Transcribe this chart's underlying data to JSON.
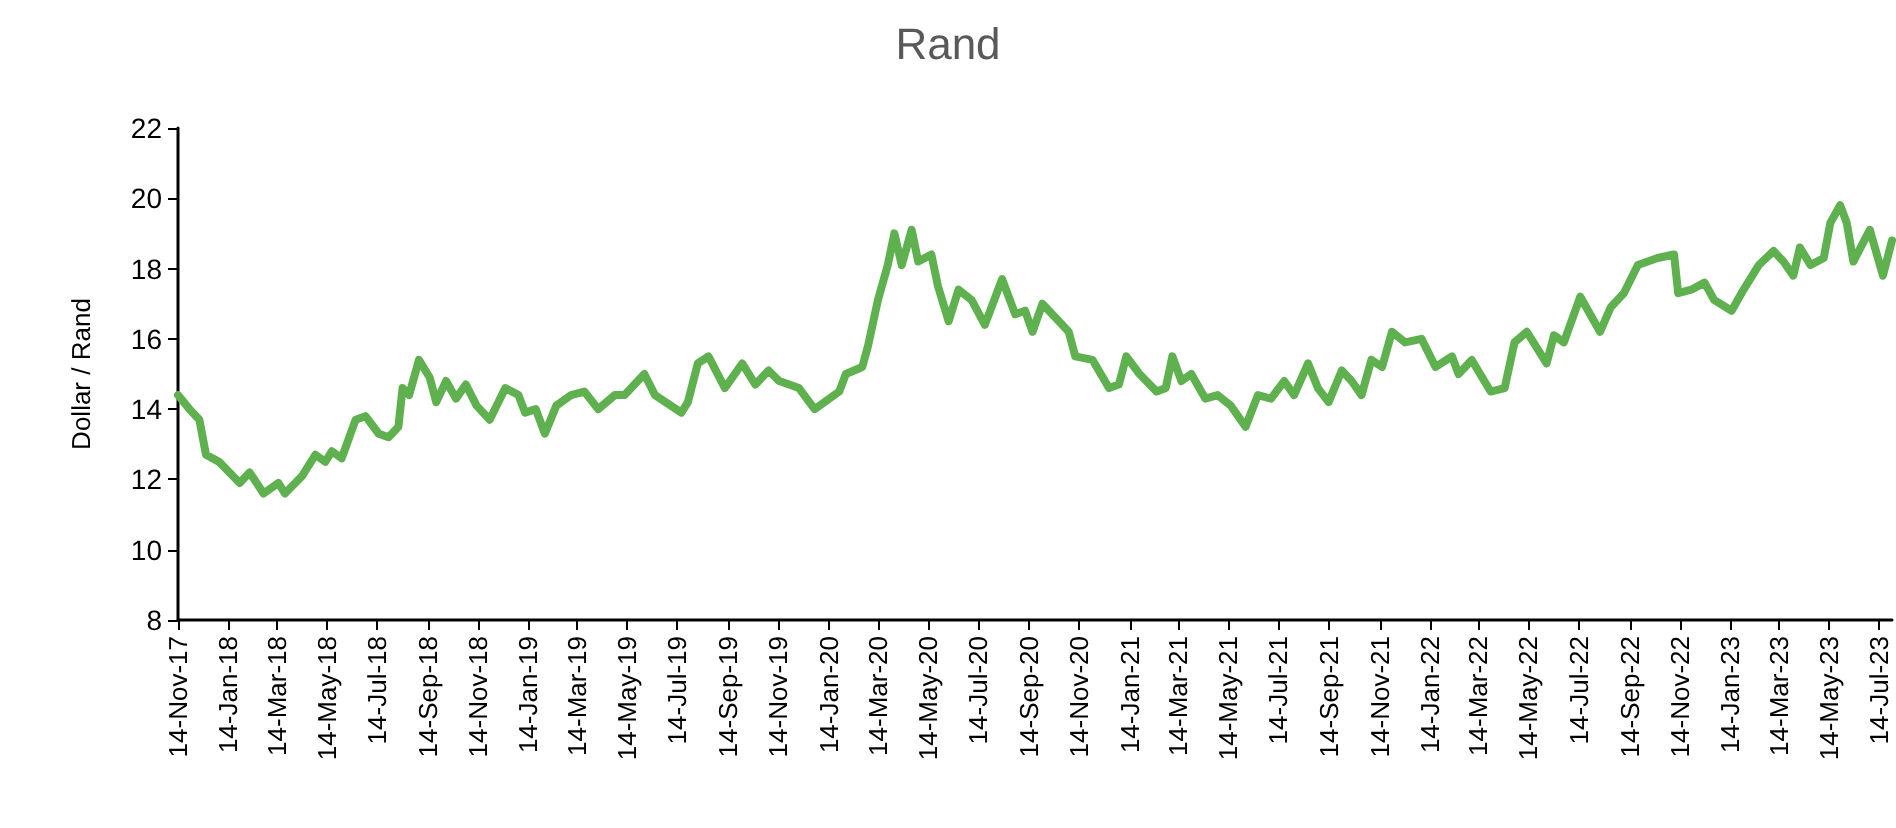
{
  "chart_data": {
    "type": "line",
    "title": "Rand",
    "ylabel": "Dollar / Rand",
    "x": [
      "2017-11-14",
      "2017-11-28",
      "2017-12-10",
      "2017-12-18",
      "2018-01-03",
      "2018-01-28",
      "2018-02-09",
      "2018-02-26",
      "2018-03-16",
      "2018-03-24",
      "2018-04-14",
      "2018-04-30",
      "2018-05-12",
      "2018-05-20",
      "2018-06-01",
      "2018-06-18",
      "2018-06-30",
      "2018-07-16",
      "2018-07-28",
      "2018-08-09",
      "2018-08-14",
      "2018-08-22",
      "2018-09-03",
      "2018-09-16",
      "2018-09-24",
      "2018-10-06",
      "2018-10-18",
      "2018-10-30",
      "2018-11-12",
      "2018-11-28",
      "2018-12-17",
      "2019-01-02",
      "2019-01-10",
      "2019-01-23",
      "2019-02-03",
      "2019-02-17",
      "2019-03-07",
      "2019-03-23",
      "2019-04-09",
      "2019-04-29",
      "2019-05-11",
      "2019-06-04",
      "2019-06-17",
      "2019-07-19",
      "2019-07-27",
      "2019-08-08",
      "2019-08-21",
      "2019-09-10",
      "2019-10-01",
      "2019-10-17",
      "2019-11-02",
      "2019-11-15",
      "2019-12-09",
      "2019-12-28",
      "2020-01-27",
      "2020-02-04",
      "2020-02-24",
      "2020-03-02",
      "2020-03-14",
      "2020-03-26",
      "2020-04-03",
      "2020-04-12",
      "2020-04-24",
      "2020-05-02",
      "2020-05-18",
      "2020-05-26",
      "2020-06-08",
      "2020-06-20",
      "2020-07-06",
      "2020-07-22",
      "2020-08-12",
      "2020-08-28",
      "2020-09-09",
      "2020-09-18",
      "2020-09-30",
      "2020-10-20",
      "2020-11-01",
      "2020-11-09",
      "2020-11-30",
      "2020-12-20",
      "2021-01-01",
      "2021-01-10",
      "2021-01-26",
      "2021-02-16",
      "2021-02-27",
      "2021-03-07",
      "2021-03-18",
      "2021-03-30",
      "2021-04-16",
      "2021-05-01",
      "2021-05-17",
      "2021-06-04",
      "2021-06-19",
      "2021-07-05",
      "2021-07-21",
      "2021-08-02",
      "2021-08-19",
      "2021-08-31",
      "2021-09-13",
      "2021-09-29",
      "2021-10-11",
      "2021-10-23",
      "2021-11-04",
      "2021-11-17",
      "2021-11-29",
      "2021-12-15",
      "2022-01-04",
      "2022-01-21",
      "2022-02-10",
      "2022-02-18",
      "2022-03-06",
      "2022-03-29",
      "2022-04-15",
      "2022-04-27",
      "2022-05-12",
      "2022-06-05",
      "2022-06-14",
      "2022-06-26",
      "2022-07-16",
      "2022-07-28",
      "2022-08-09",
      "2022-08-22",
      "2022-09-07",
      "2022-09-24",
      "2022-10-18",
      "2022-11-07",
      "2022-11-12",
      "2022-11-28",
      "2022-12-14",
      "2022-12-26",
      "2023-01-16",
      "2023-01-28",
      "2023-02-18",
      "2023-03-08",
      "2023-03-20",
      "2023-04-01",
      "2023-04-09",
      "2023-04-22",
      "2023-05-08",
      "2023-05-16",
      "2023-05-28",
      "2023-06-05",
      "2023-06-13",
      "2023-07-03",
      "2023-07-19",
      "2023-07-30"
    ],
    "series": [
      {
        "color": "#5fb150",
        "values": [
          14.4,
          14.0,
          13.7,
          12.7,
          12.5,
          11.9,
          12.2,
          11.6,
          11.9,
          11.6,
          12.1,
          12.7,
          12.5,
          12.8,
          12.6,
          13.7,
          13.8,
          13.3,
          13.2,
          13.5,
          14.6,
          14.4,
          15.4,
          14.9,
          14.2,
          14.8,
          14.3,
          14.7,
          14.1,
          13.7,
          14.6,
          14.4,
          13.9,
          14.0,
          13.3,
          14.1,
          14.4,
          14.5,
          14.0,
          14.4,
          14.4,
          15.0,
          14.4,
          13.9,
          14.2,
          15.3,
          15.5,
          14.6,
          15.3,
          14.7,
          15.1,
          14.8,
          14.6,
          14.0,
          14.5,
          15.0,
          15.2,
          15.8,
          17.1,
          18.1,
          19.0,
          18.1,
          19.1,
          18.2,
          18.4,
          17.5,
          16.5,
          17.4,
          17.1,
          16.4,
          17.7,
          16.7,
          16.8,
          16.2,
          17.0,
          16.5,
          16.2,
          15.5,
          15.4,
          14.6,
          14.7,
          15.5,
          15.0,
          14.5,
          14.6,
          15.5,
          14.8,
          15.0,
          14.3,
          14.4,
          14.1,
          13.5,
          14.4,
          14.3,
          14.8,
          14.4,
          15.3,
          14.6,
          14.2,
          15.1,
          14.8,
          14.4,
          15.4,
          15.2,
          16.2,
          15.9,
          16.0,
          15.2,
          15.5,
          15.0,
          15.4,
          14.5,
          14.6,
          15.9,
          16.2,
          15.3,
          16.1,
          15.9,
          17.2,
          16.7,
          16.2,
          16.9,
          17.3,
          18.1,
          18.3,
          18.4,
          17.3,
          17.4,
          17.6,
          17.1,
          16.8,
          17.3,
          18.1,
          18.5,
          18.2,
          17.8,
          18.6,
          18.1,
          18.3,
          19.3,
          19.8,
          19.3,
          18.2,
          19.1,
          17.8,
          18.8
        ]
      }
    ],
    "xlim": [
      "2017-11-14",
      "2023-07-30"
    ],
    "xticks": [
      {
        "value": "2017-11-14",
        "label": "14-Nov-17"
      },
      {
        "value": "2018-01-14",
        "label": "14-Jan-18"
      },
      {
        "value": "2018-03-14",
        "label": "14-Mar-18"
      },
      {
        "value": "2018-05-14",
        "label": "14-May-18"
      },
      {
        "value": "2018-07-14",
        "label": "14-Jul-18"
      },
      {
        "value": "2018-09-14",
        "label": "14-Sep-18"
      },
      {
        "value": "2018-11-14",
        "label": "14-Nov-18"
      },
      {
        "value": "2019-01-14",
        "label": "14-Jan-19"
      },
      {
        "value": "2019-03-14",
        "label": "14-Mar-19"
      },
      {
        "value": "2019-05-14",
        "label": "14-May-19"
      },
      {
        "value": "2019-07-14",
        "label": "14-Jul-19"
      },
      {
        "value": "2019-09-14",
        "label": "14-Sep-19"
      },
      {
        "value": "2019-11-14",
        "label": "14-Nov-19"
      },
      {
        "value": "2020-01-14",
        "label": "14-Jan-20"
      },
      {
        "value": "2020-03-14",
        "label": "14-Mar-20"
      },
      {
        "value": "2020-05-14",
        "label": "14-May-20"
      },
      {
        "value": "2020-07-14",
        "label": "14-Jul-20"
      },
      {
        "value": "2020-09-14",
        "label": "14-Sep-20"
      },
      {
        "value": "2020-11-14",
        "label": "14-Nov-20"
      },
      {
        "value": "2021-01-14",
        "label": "14-Jan-21"
      },
      {
        "value": "2021-03-14",
        "label": "14-Mar-21"
      },
      {
        "value": "2021-05-14",
        "label": "14-May-21"
      },
      {
        "value": "2021-07-14",
        "label": "14-Jul-21"
      },
      {
        "value": "2021-09-14",
        "label": "14-Sep-21"
      },
      {
        "value": "2021-11-14",
        "label": "14-Nov-21"
      },
      {
        "value": "2022-01-14",
        "label": "14-Jan-22"
      },
      {
        "value": "2022-03-14",
        "label": "14-Mar-22"
      },
      {
        "value": "2022-05-14",
        "label": "14-May-22"
      },
      {
        "value": "2022-07-14",
        "label": "14-Jul-22"
      },
      {
        "value": "2022-09-14",
        "label": "14-Sep-22"
      },
      {
        "value": "2022-11-14",
        "label": "14-Nov-22"
      },
      {
        "value": "2023-01-14",
        "label": "14-Jan-23"
      },
      {
        "value": "2023-03-14",
        "label": "14-Mar-23"
      },
      {
        "value": "2023-05-14",
        "label": "14-May-23"
      },
      {
        "value": "2023-07-14",
        "label": "14-Jul-23"
      }
    ],
    "ylim": [
      8,
      22
    ],
    "yticks": [
      8,
      10,
      12,
      14,
      16,
      18,
      20,
      22
    ],
    "marker": "none",
    "line_style": "solid"
  }
}
